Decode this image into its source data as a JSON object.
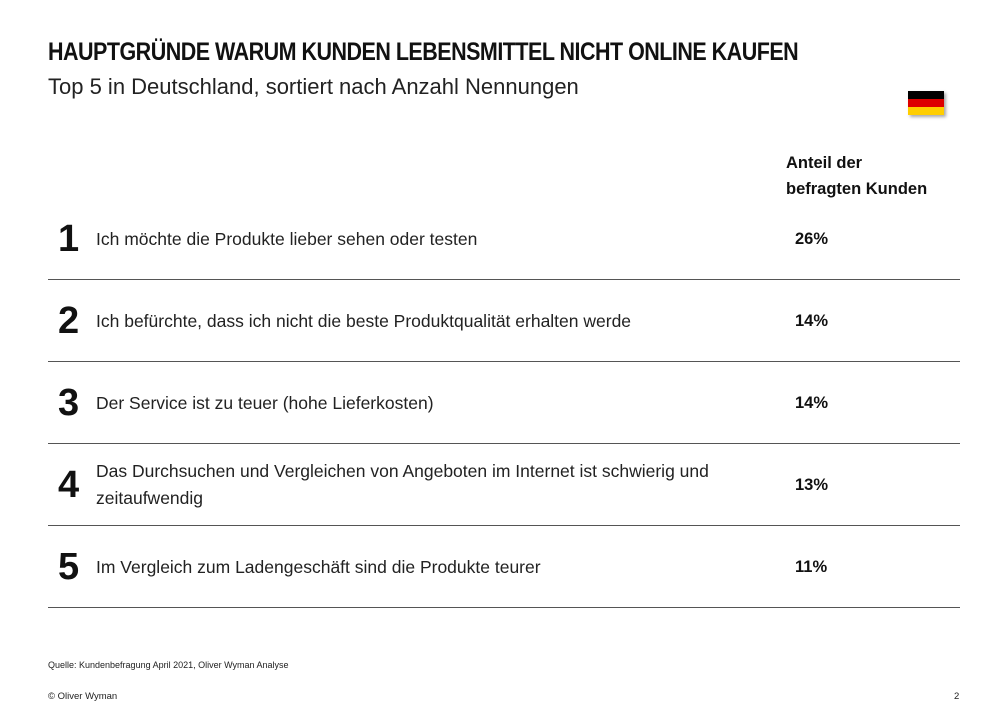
{
  "header": {
    "title": "HAUPTGRÜNDE WARUM KUNDEN LEBENSMITTEL NICHT ONLINE KAUFEN",
    "subtitle": "Top 5 in Deutschland, sortiert nach Anzahl Nennungen",
    "flag": {
      "icon": "germany-flag-icon",
      "colors": [
        "#000000",
        "#DD0000",
        "#FFCE00"
      ]
    }
  },
  "table": {
    "column_header_line1": "Anteil der",
    "column_header_line2": "befragten Kunden",
    "rows": [
      {
        "rank": "1",
        "reason": "Ich möchte die Produkte lieber sehen oder testen",
        "share": "26%"
      },
      {
        "rank": "2",
        "reason": "Ich befürchte, dass ich nicht die beste Produktqualität erhalten werde",
        "share": "14%"
      },
      {
        "rank": "3",
        "reason": "Der Service ist zu teuer (hohe Lieferkosten)",
        "share": "14%"
      },
      {
        "rank": "4",
        "reason": "Das Durchsuchen und Vergleichen von Angeboten im Internet ist schwierig und zeitaufwendig",
        "share": "13%"
      },
      {
        "rank": "5",
        "reason": "Im Vergleich zum Ladengeschäft sind die Produkte teurer",
        "share": "11%"
      }
    ]
  },
  "footer": {
    "source": "Quelle: Kundenbefragung April 2021, Oliver Wyman Analyse",
    "copyright": "© Oliver Wyman",
    "page_number": "2"
  }
}
